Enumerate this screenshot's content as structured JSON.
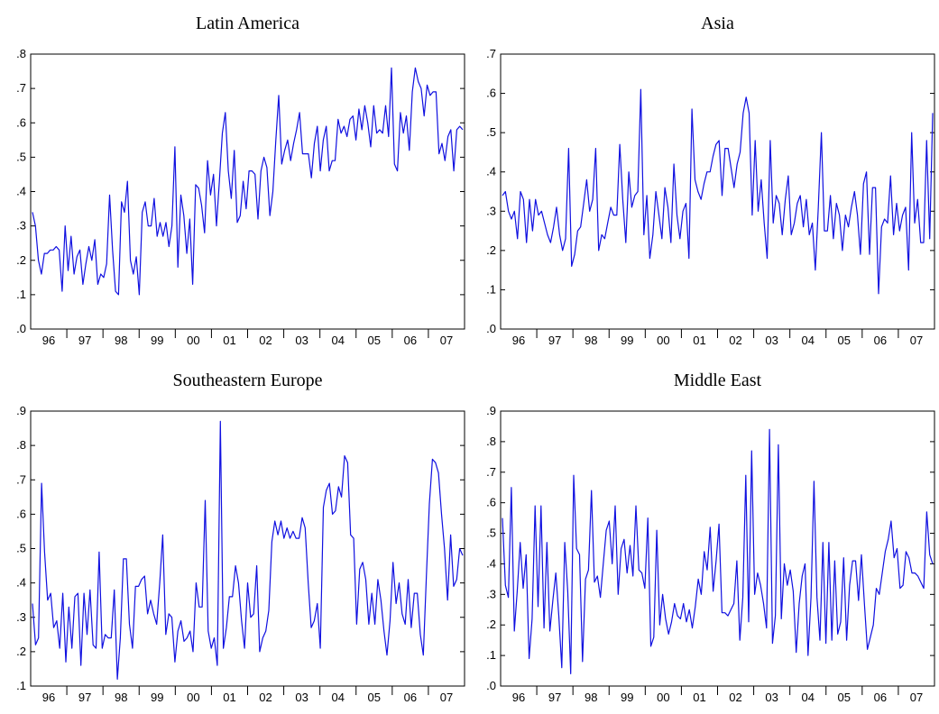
{
  "chart_data": [
    {
      "type": "line",
      "title": "Latin America",
      "xlabel": "",
      "ylabel": "",
      "ylim": [
        0,
        0.8
      ],
      "yticks": [
        ".0",
        ".1",
        ".2",
        ".3",
        ".4",
        ".5",
        ".6",
        ".7",
        ".8"
      ],
      "xticks": [
        "96",
        "97",
        "98",
        "99",
        "00",
        "01",
        "02",
        "03",
        "04",
        "05",
        "06",
        "07"
      ],
      "grid": false,
      "series": [
        {
          "color": "#1010e0",
          "values": [
            0.34,
            0.3,
            0.2,
            0.16,
            0.22,
            0.22,
            0.23,
            0.23,
            0.24,
            0.23,
            0.11,
            0.3,
            0.17,
            0.27,
            0.16,
            0.21,
            0.23,
            0.13,
            0.19,
            0.24,
            0.2,
            0.26,
            0.13,
            0.16,
            0.15,
            0.19,
            0.39,
            0.23,
            0.11,
            0.1,
            0.37,
            0.34,
            0.43,
            0.2,
            0.16,
            0.21,
            0.1,
            0.34,
            0.37,
            0.3,
            0.3,
            0.38,
            0.27,
            0.31,
            0.27,
            0.31,
            0.24,
            0.3,
            0.53,
            0.18,
            0.39,
            0.33,
            0.22,
            0.32,
            0.13,
            0.42,
            0.41,
            0.36,
            0.28,
            0.49,
            0.39,
            0.45,
            0.3,
            0.43,
            0.57,
            0.63,
            0.46,
            0.38,
            0.52,
            0.31,
            0.33,
            0.43,
            0.35,
            0.46,
            0.46,
            0.45,
            0.32,
            0.46,
            0.5,
            0.47,
            0.33,
            0.4,
            0.55,
            0.68,
            0.48,
            0.52,
            0.55,
            0.49,
            0.54,
            0.58,
            0.63,
            0.51,
            0.51,
            0.51,
            0.44,
            0.54,
            0.59,
            0.46,
            0.55,
            0.59,
            0.46,
            0.49,
            0.49,
            0.61,
            0.57,
            0.59,
            0.56,
            0.61,
            0.62,
            0.55,
            0.64,
            0.58,
            0.65,
            0.6,
            0.53,
            0.65,
            0.57,
            0.58,
            0.57,
            0.65,
            0.56,
            0.76,
            0.48,
            0.46,
            0.63,
            0.57,
            0.62,
            0.52,
            0.69,
            0.76,
            0.72,
            0.7,
            0.62,
            0.71,
            0.68,
            0.69,
            0.69,
            0.51,
            0.54,
            0.49,
            0.56,
            0.58,
            0.46,
            0.58,
            0.59,
            0.58
          ]
        }
      ]
    },
    {
      "type": "line",
      "title": "Asia",
      "xlabel": "",
      "ylabel": "",
      "ylim": [
        0,
        0.7
      ],
      "yticks": [
        ".0",
        ".1",
        ".2",
        ".3",
        ".4",
        ".5",
        ".6",
        ".7"
      ],
      "xticks": [
        "96",
        "97",
        "98",
        "99",
        "00",
        "01",
        "02",
        "03",
        "04",
        "05",
        "06",
        "07"
      ],
      "grid": false,
      "series": [
        {
          "color": "#1010e0",
          "values": [
            0.34,
            0.35,
            0.3,
            0.28,
            0.3,
            0.23,
            0.35,
            0.33,
            0.22,
            0.33,
            0.25,
            0.33,
            0.29,
            0.3,
            0.27,
            0.24,
            0.22,
            0.26,
            0.31,
            0.24,
            0.2,
            0.23,
            0.46,
            0.16,
            0.19,
            0.25,
            0.26,
            0.32,
            0.38,
            0.3,
            0.33,
            0.46,
            0.2,
            0.24,
            0.23,
            0.27,
            0.31,
            0.29,
            0.29,
            0.47,
            0.33,
            0.22,
            0.4,
            0.31,
            0.34,
            0.35,
            0.61,
            0.24,
            0.34,
            0.18,
            0.24,
            0.35,
            0.29,
            0.23,
            0.36,
            0.31,
            0.22,
            0.42,
            0.29,
            0.23,
            0.3,
            0.32,
            0.18,
            0.56,
            0.38,
            0.35,
            0.33,
            0.37,
            0.4,
            0.4,
            0.44,
            0.47,
            0.48,
            0.34,
            0.46,
            0.46,
            0.41,
            0.36,
            0.42,
            0.45,
            0.55,
            0.59,
            0.55,
            0.29,
            0.48,
            0.3,
            0.38,
            0.27,
            0.18,
            0.48,
            0.27,
            0.34,
            0.32,
            0.24,
            0.33,
            0.39,
            0.24,
            0.27,
            0.32,
            0.34,
            0.26,
            0.33,
            0.24,
            0.27,
            0.15,
            0.31,
            0.5,
            0.25,
            0.25,
            0.34,
            0.23,
            0.32,
            0.29,
            0.2,
            0.29,
            0.26,
            0.31,
            0.35,
            0.29,
            0.19,
            0.37,
            0.4,
            0.19,
            0.36,
            0.36,
            0.09,
            0.26,
            0.28,
            0.27,
            0.39,
            0.24,
            0.32,
            0.25,
            0.29,
            0.31,
            0.15,
            0.5,
            0.27,
            0.33,
            0.22,
            0.22,
            0.48,
            0.23,
            0.55
          ]
        }
      ]
    },
    {
      "type": "line",
      "title": "Southeastern Europe",
      "xlabel": "",
      "ylabel": "",
      "ylim": [
        0.1,
        0.9
      ],
      "yticks": [
        ".1",
        ".2",
        ".3",
        ".4",
        ".5",
        ".6",
        ".7",
        ".8",
        ".9"
      ],
      "xticks": [
        "96",
        "97",
        "98",
        "99",
        "00",
        "01",
        "02",
        "03",
        "04",
        "05",
        "06",
        "07"
      ],
      "grid": false,
      "series": [
        {
          "color": "#1010e0",
          "values": [
            0.34,
            0.22,
            0.24,
            0.69,
            0.49,
            0.35,
            0.37,
            0.27,
            0.29,
            0.21,
            0.37,
            0.17,
            0.33,
            0.21,
            0.36,
            0.37,
            0.16,
            0.37,
            0.25,
            0.38,
            0.22,
            0.21,
            0.49,
            0.21,
            0.25,
            0.24,
            0.24,
            0.38,
            0.12,
            0.24,
            0.47,
            0.47,
            0.28,
            0.21,
            0.39,
            0.39,
            0.41,
            0.42,
            0.31,
            0.35,
            0.31,
            0.28,
            0.4,
            0.54,
            0.25,
            0.31,
            0.3,
            0.17,
            0.26,
            0.29,
            0.23,
            0.24,
            0.26,
            0.2,
            0.4,
            0.33,
            0.33,
            0.64,
            0.26,
            0.21,
            0.24,
            0.16,
            0.87,
            0.21,
            0.27,
            0.36,
            0.36,
            0.45,
            0.4,
            0.29,
            0.21,
            0.4,
            0.3,
            0.31,
            0.45,
            0.2,
            0.24,
            0.26,
            0.32,
            0.52,
            0.58,
            0.54,
            0.58,
            0.53,
            0.56,
            0.53,
            0.55,
            0.53,
            0.53,
            0.59,
            0.56,
            0.4,
            0.27,
            0.29,
            0.34,
            0.21,
            0.62,
            0.67,
            0.69,
            0.6,
            0.61,
            0.68,
            0.65,
            0.77,
            0.75,
            0.54,
            0.53,
            0.28,
            0.44,
            0.46,
            0.41,
            0.28,
            0.37,
            0.28,
            0.41,
            0.35,
            0.26,
            0.19,
            0.29,
            0.46,
            0.34,
            0.4,
            0.31,
            0.28,
            0.41,
            0.27,
            0.37,
            0.37,
            0.25,
            0.19,
            0.42,
            0.63,
            0.76,
            0.75,
            0.72,
            0.6,
            0.5,
            0.35,
            0.54,
            0.39,
            0.41,
            0.5,
            0.48
          ]
        }
      ]
    },
    {
      "type": "line",
      "title": "Middle East",
      "xlabel": "",
      "ylabel": "",
      "ylim": [
        0,
        0.9
      ],
      "yticks": [
        ".0",
        ".1",
        ".2",
        ".3",
        ".4",
        ".5",
        ".6",
        ".7",
        ".8",
        ".9"
      ],
      "xticks": [
        "96",
        "97",
        "98",
        "99",
        "00",
        "01",
        "02",
        "03",
        "04",
        "05",
        "06",
        "07"
      ],
      "grid": false,
      "series": [
        {
          "color": "#1010e0",
          "values": [
            0.55,
            0.33,
            0.29,
            0.65,
            0.18,
            0.31,
            0.47,
            0.32,
            0.43,
            0.09,
            0.22,
            0.59,
            0.26,
            0.59,
            0.19,
            0.47,
            0.18,
            0.28,
            0.37,
            0.23,
            0.06,
            0.47,
            0.31,
            0.04,
            0.69,
            0.45,
            0.43,
            0.08,
            0.35,
            0.38,
            0.64,
            0.34,
            0.36,
            0.29,
            0.4,
            0.51,
            0.54,
            0.4,
            0.59,
            0.3,
            0.45,
            0.48,
            0.37,
            0.46,
            0.36,
            0.59,
            0.38,
            0.37,
            0.32,
            0.55,
            0.13,
            0.16,
            0.51,
            0.2,
            0.3,
            0.22,
            0.17,
            0.21,
            0.27,
            0.23,
            0.22,
            0.27,
            0.21,
            0.25,
            0.19,
            0.26,
            0.35,
            0.3,
            0.44,
            0.38,
            0.52,
            0.31,
            0.41,
            0.53,
            0.24,
            0.24,
            0.23,
            0.25,
            0.27,
            0.41,
            0.15,
            0.29,
            0.69,
            0.21,
            0.77,
            0.3,
            0.37,
            0.33,
            0.27,
            0.19,
            0.84,
            0.14,
            0.23,
            0.79,
            0.22,
            0.4,
            0.33,
            0.38,
            0.31,
            0.11,
            0.27,
            0.36,
            0.4,
            0.1,
            0.29,
            0.67,
            0.29,
            0.15,
            0.47,
            0.14,
            0.47,
            0.15,
            0.41,
            0.17,
            0.21,
            0.42,
            0.15,
            0.33,
            0.41,
            0.41,
            0.28,
            0.43,
            0.27,
            0.12,
            0.16,
            0.2,
            0.32,
            0.3,
            0.37,
            0.44,
            0.48,
            0.54,
            0.42,
            0.45,
            0.32,
            0.33,
            0.44,
            0.42,
            0.37,
            0.37,
            0.36,
            0.34,
            0.32,
            0.57,
            0.43,
            0.4
          ]
        }
      ]
    }
  ]
}
